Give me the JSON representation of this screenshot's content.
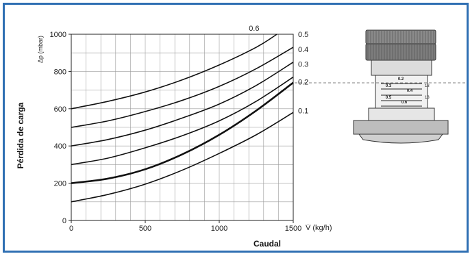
{
  "chart_data": {
    "type": "line",
    "xlabel": "Caudal",
    "ylabel": "Pérdida de carga",
    "y_unit_label": "Δp (mbar)",
    "x_unit_label": "V̇  (kg/h)",
    "xlim": [
      0,
      1500
    ],
    "ylim": [
      0,
      1000
    ],
    "x_ticks": [
      "0",
      "500",
      "1000",
      "1500"
    ],
    "y_ticks": [
      "0",
      "200",
      "400",
      "600",
      "800",
      "1000"
    ],
    "grid": true,
    "x": [
      0,
      250,
      500,
      750,
      1000,
      1250,
      1500
    ],
    "series": [
      {
        "name": "0.1",
        "values": [
          100,
          140,
          195,
          270,
          360,
          460,
          580
        ]
      },
      {
        "name": "0.2",
        "values": [
          200,
          225,
          275,
          355,
          460,
          590,
          740
        ]
      },
      {
        "name": "0.3",
        "values": [
          300,
          335,
          390,
          455,
          535,
          640,
          770
        ]
      },
      {
        "name": "0.4",
        "values": [
          400,
          435,
          485,
          550,
          625,
          725,
          850
        ]
      },
      {
        "name": "0.5",
        "values": [
          500,
          535,
          585,
          645,
          720,
          815,
          930
        ]
      },
      {
        "name": "0.6",
        "values": [
          600,
          640,
          690,
          755,
          835,
          930,
          1000
        ]
      }
    ],
    "top_label": "0.6",
    "side_labels": [
      "0.5",
      "0.4",
      "0.3",
      "0.2",
      "0.1"
    ]
  },
  "valve": {
    "scale_labels": [
      "0.2",
      "0.3",
      "0.4",
      "0.5",
      "0.6"
    ],
    "side_marks": [
      "13",
      "13"
    ]
  },
  "colors": {
    "frame": "#2f6fb3",
    "line": "#111111",
    "grid": "#9a9a9a",
    "dash": "#555555"
  }
}
